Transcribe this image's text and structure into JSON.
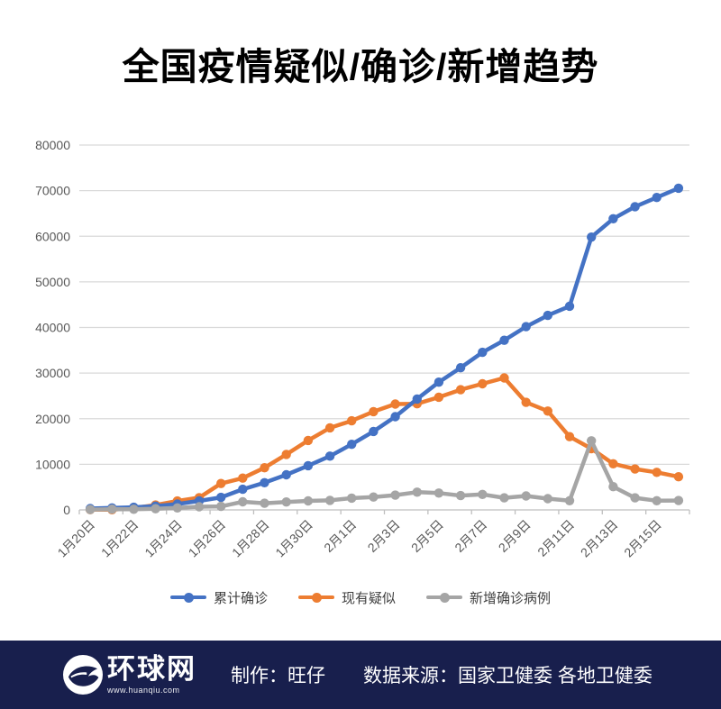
{
  "title": "全国疫情疑似/确诊/新增趋势",
  "chart_data": {
    "type": "line",
    "title": "全国疫情疑似/确诊/新增趋势",
    "categories": [
      "1月20日",
      "1月21日",
      "1月22日",
      "1月23日",
      "1月24日",
      "1月25日",
      "1月26日",
      "1月27日",
      "1月28日",
      "1月29日",
      "1月30日",
      "1月31日",
      "2月1日",
      "2月2日",
      "2月3日",
      "2月4日",
      "2月5日",
      "2月6日",
      "2月7日",
      "2月8日",
      "2月9日",
      "2月10日",
      "2月11日",
      "2月12日",
      "2月13日",
      "2月14日",
      "2月15日",
      "2月16日"
    ],
    "x_tick_labels_visible": [
      "1月20日",
      "1月22日",
      "1月24日",
      "1月26日",
      "1月28日",
      "1月30日",
      "2月1日",
      "2月3日",
      "2月5日",
      "2月7日",
      "2月9日",
      "2月11日",
      "2月13日",
      "2月15日"
    ],
    "x_label_every": 2,
    "series": [
      {
        "name": "累计确诊",
        "color": "#4472C4",
        "values": [
          291,
          440,
          571,
          830,
          1287,
          1975,
          2744,
          4515,
          5974,
          7711,
          9692,
          11791,
          14380,
          17205,
          20438,
          24324,
          28018,
          31161,
          34546,
          37198,
          40171,
          42638,
          44653,
          59804,
          63851,
          66492,
          68500,
          70548
        ]
      },
      {
        "name": "现有疑似",
        "color": "#ED7D31",
        "values": [
          54,
          37,
          393,
          1072,
          1965,
          2684,
          5794,
          6973,
          9239,
          12167,
          15238,
          17988,
          19544,
          21558,
          23214,
          23260,
          24702,
          26359,
          27657,
          28942,
          23589,
          21675,
          16067,
          13435,
          10109,
          8969,
          8228,
          7264
        ]
      },
      {
        "name": "新增确诊病例",
        "color": "#A5A5A5",
        "values": [
          77,
          149,
          131,
          259,
          444,
          688,
          769,
          1771,
          1459,
          1737,
          1982,
          2102,
          2590,
          2829,
          3235,
          3887,
          3694,
          3143,
          3399,
          2656,
          3062,
          2478,
          2015,
          15152,
          5090,
          2641,
          2009,
          2048
        ]
      }
    ],
    "ylim": [
      0,
      80000
    ],
    "ytick_step": 10000,
    "ytick_labels": [
      "0",
      "10000",
      "20000",
      "30000",
      "40000",
      "50000",
      "60000",
      "70000",
      "80000"
    ],
    "grid": "horizontal",
    "legend_position": "bottom",
    "grid_color": "#D9D9D9",
    "axis_color": "#BFBFBF",
    "tick_label_color": "#595959"
  },
  "footer": {
    "logo_text": "环球网",
    "logo_url": "www.huanqiu.com",
    "credit": "制作：旺仔",
    "source": "数据来源：国家卫健委 各地卫健委",
    "background": "#181F4D"
  }
}
